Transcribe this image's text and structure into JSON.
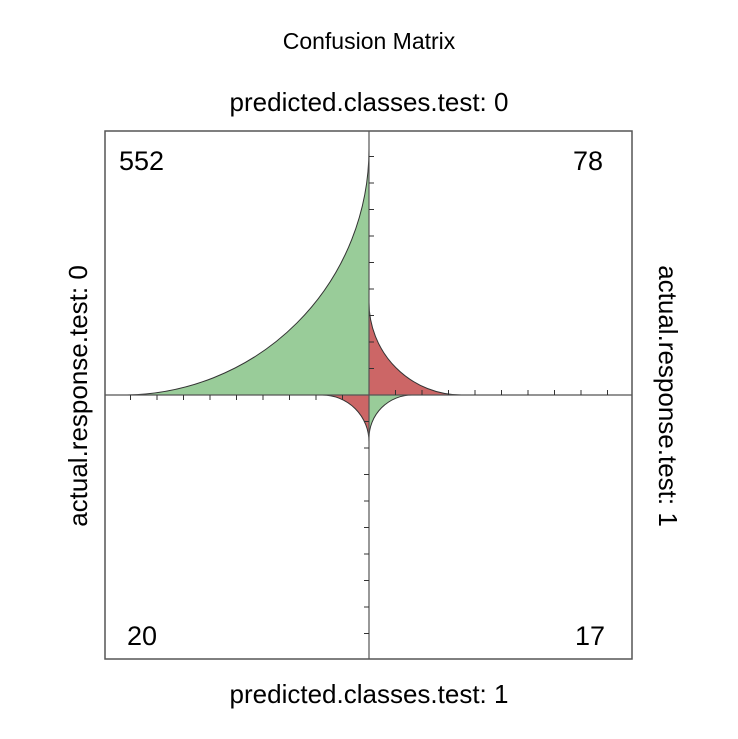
{
  "chart_data": {
    "type": "fourfold",
    "title": "Confusion Matrix",
    "column_labels": [
      "predicted.classes.test: 0",
      "predicted.classes.test: 1"
    ],
    "row_labels": [
      "actual.response.test: 0",
      "actual.response.test: 1"
    ],
    "cells": [
      {
        "actual": "0",
        "predicted": "0",
        "count": "552",
        "value": 552,
        "quadrant": "top-left",
        "color": "#99cc99"
      },
      {
        "actual": "1",
        "predicted": "0",
        "count": "78",
        "value": 78,
        "quadrant": "top-right",
        "color": "#cc6666"
      },
      {
        "actual": "0",
        "predicted": "1",
        "count": "20",
        "value": 20,
        "quadrant": "bottom-left",
        "color": "#cc6666"
      },
      {
        "actual": "1",
        "predicted": "1",
        "count": "17",
        "value": 17,
        "quadrant": "bottom-right",
        "color": "#99cc99"
      }
    ],
    "colors": {
      "agree": "#99cc99",
      "disagree": "#cc6666",
      "frame": "#555555"
    }
  }
}
